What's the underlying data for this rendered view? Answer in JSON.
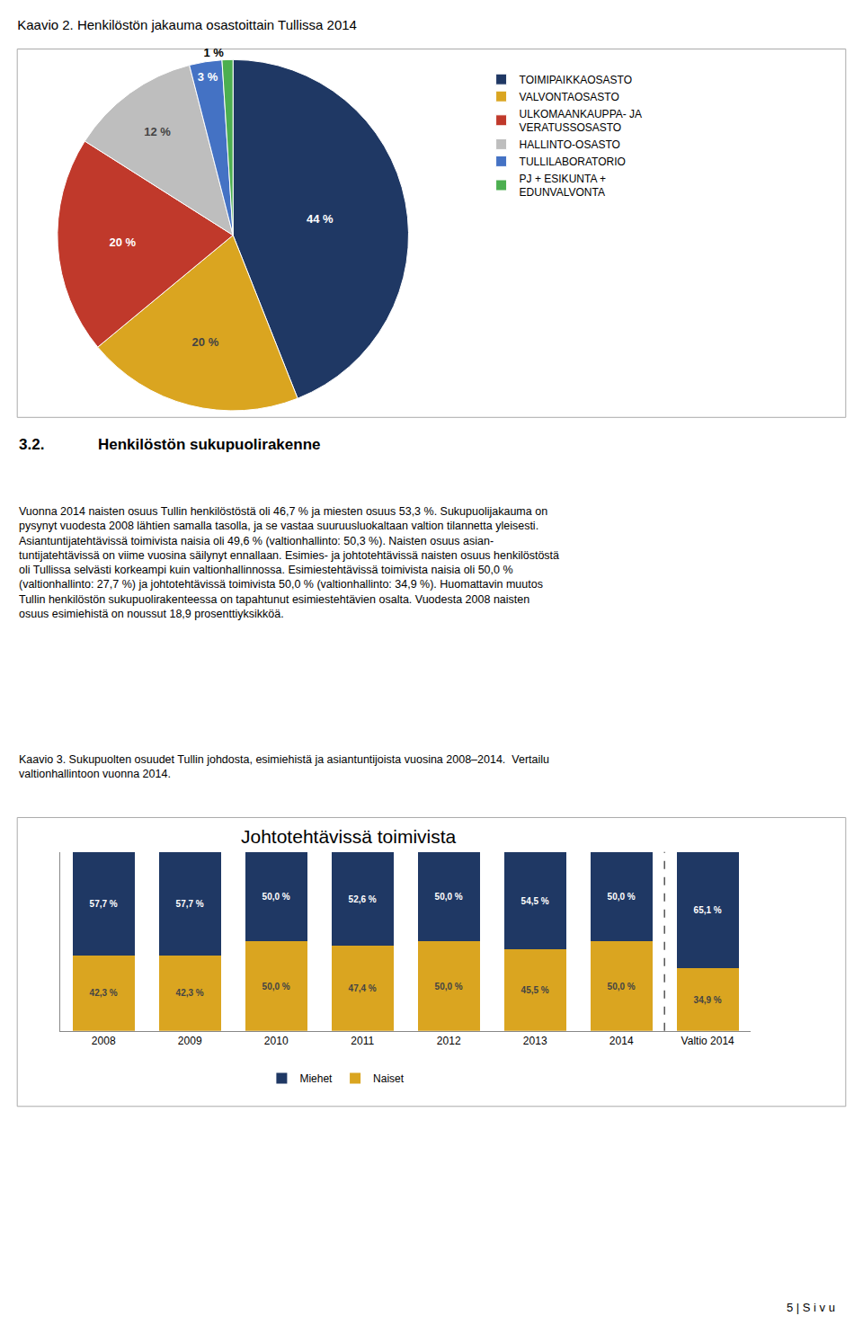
{
  "chart_data": [
    {
      "type": "pie",
      "title": "Kaavio 2. Henkilöstön jakauma osastoittain Tullissa 2014",
      "categories": [
        "TOIMIPAIKKAOSASTO",
        "VALVONTAOSASTO",
        "ULKOMAANKAUPPA- JA\nVERATUSSOSASTO",
        "HALLINTO-OSASTO",
        "TULLILABORATORIO",
        "PJ + ESIKUNTA +\nEDUNVALVONTA"
      ],
      "values": [
        44,
        20,
        20,
        12,
        3,
        1
      ],
      "value_labels": [
        "44 %",
        "20 %",
        "20 %",
        "12 %",
        "3 %",
        "1 %"
      ],
      "colors": [
        "#1F3864",
        "#DAA520",
        "#C0392B",
        "#BEBEBE",
        "#4472C4",
        "#4CAF50"
      ],
      "data_labels": true,
      "legend": "right",
      "annotations": [
        "3.2.",
        "Henkilöstön sukupuolirakenne",
        "Vuonna 2014 naisten osuus Tullin henkilöstöstä oli 46,7 % ja miesten osuus 53,3 %. Sukupuolijakauma on",
        "pysynyt vuodesta 2008 lähtien samalla tasolla, ja se vastaa suuruusluokaltaan valtion tilannetta yleisesti.",
        "Asiantuntijatehtävissä toimivista naisia oli 49,6 % (valtionhallinto: 50,3 %). Naisten osuus asian-",
        "tuntijatehtävissä on viime vuosina säilynyt ennallaan. Esimies- ja johtotehtävissä naisten osuus henkilöstöstä",
        "oli Tullissa selvästi korkeampi kuin valtionhallinnossa. Esimiestehtävissä toimivista naisia oli 50,0 %",
        "(valtionhallinto: 27,7 %) ja johtotehtävissä toimivista 50,0 % (valtionhallinto: 34,9 %). Huomattavin muutos",
        "Tullin henkilöstön sukupuolirakenteessa on tapahtunut esimiestehtävien osalta. Vuodesta 2008 naisten",
        "osuus esimiehistä on noussut 18,9 prosenttiyksikköä."
      ]
    },
    {
      "type": "bar",
      "title": "Johtotehtävissä toimivista",
      "subtitle": "Kaavio 3. Sukupuolten osuudet Tullin johdosta, esimiehistä ja asiantuntijoista vuosina 2008–2014.  Vertailu\nvaltionhallintoon vuonna 2014.",
      "categories": [
        "2008",
        "2009",
        "2010",
        "2011",
        "2012",
        "2013",
        "2014",
        "Valtio 2014"
      ],
      "series": [
        {
          "name": "Naiset",
          "color": "#DAA520",
          "values": [
            42.3,
            42.3,
            50.0,
            47.4,
            50.0,
            45.5,
            50.0,
            34.9
          ],
          "value_labels": [
            "42,3 %",
            "42,3 %",
            "50,0 %",
            "47,4 %",
            "50,0 %",
            "45,5 %",
            "50,0 %",
            "34,9 %"
          ]
        },
        {
          "name": "Miehet",
          "color": "#1F3864",
          "values": [
            57.7,
            57.7,
            50.0,
            52.6,
            50.0,
            54.5,
            50.0,
            65.1
          ],
          "value_labels": [
            "57,7 %",
            "57,7 %",
            "50,0 %",
            "52,6 %",
            "50,0 %",
            "54,5 %",
            "50,0 %",
            "65,1 %"
          ]
        }
      ],
      "stacked": true,
      "ylim": [
        0,
        100
      ],
      "yticks": [],
      "tick_labels": "x",
      "grid": false,
      "data_labels": true,
      "legend": "bottom",
      "annotations": [
        "5 | S i v u"
      ]
    }
  ]
}
